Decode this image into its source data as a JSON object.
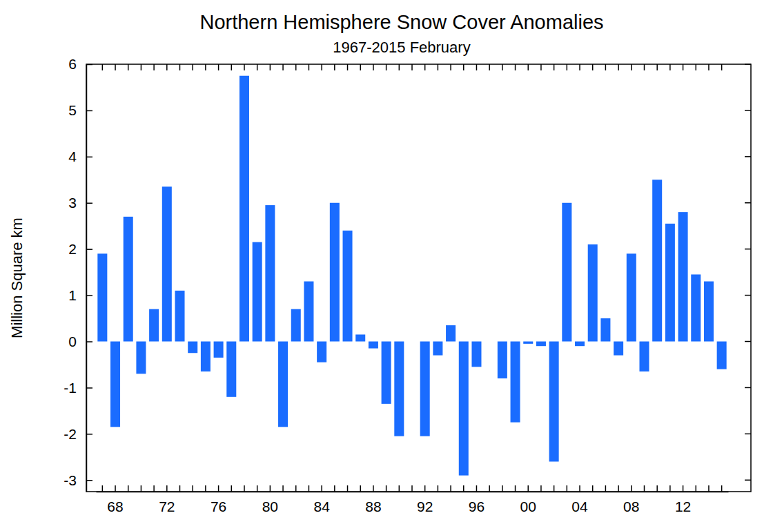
{
  "chart_data": {
    "type": "bar",
    "title": "Northern Hemisphere Snow Cover Anomalies",
    "subtitle": "1967-2015 February",
    "y_label": "Million Square km",
    "categories": [
      null,
      "68",
      null,
      null,
      null,
      "72",
      null,
      null,
      null,
      "76",
      null,
      null,
      null,
      "80",
      null,
      null,
      null,
      "84",
      null,
      null,
      null,
      "88",
      null,
      null,
      null,
      "92",
      null,
      null,
      null,
      "96",
      null,
      null,
      null,
      "00",
      null,
      null,
      null,
      "04",
      null,
      null,
      null,
      "08",
      null,
      null,
      null,
      "12",
      null,
      null,
      null
    ],
    "values": [
      1.9,
      -1.85,
      2.7,
      -0.7,
      0.7,
      3.35,
      1.1,
      -0.25,
      -0.65,
      -0.35,
      -1.2,
      5.75,
      2.15,
      2.95,
      -1.85,
      0.7,
      1.3,
      -0.45,
      3.0,
      2.4,
      0.15,
      -0.15,
      -1.35,
      -2.05,
      null,
      -2.05,
      -0.3,
      0.35,
      -2.9,
      -0.55,
      null,
      -0.8,
      -1.75,
      -0.05,
      -0.1,
      -2.6,
      3.0,
      -0.1,
      2.1,
      0.5,
      -0.3,
      1.9,
      -0.65,
      3.5,
      2.55,
      2.8,
      1.45,
      1.3,
      -0.6
    ],
    "color": "#1a6cff",
    "ylim": [
      -3.25,
      6
    ],
    "yticks": [
      -3,
      -2,
      -1,
      0,
      1,
      2,
      3,
      4,
      5,
      6
    ],
    "grid": false
  }
}
